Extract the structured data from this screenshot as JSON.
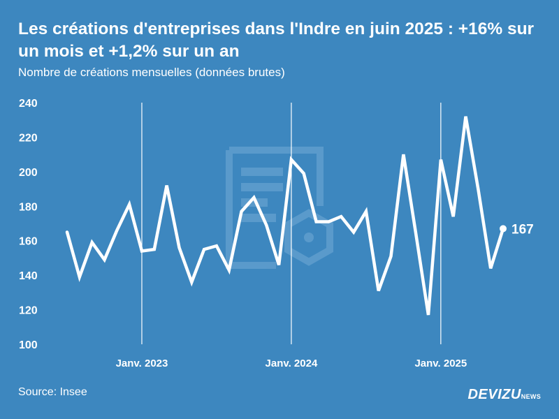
{
  "header": {
    "title": "Les créations d'entreprises dans l'Indre en juin 2025 : +16% sur un mois et +1,2% sur un an",
    "subtitle": "Nombre de créations mensuelles (données brutes)"
  },
  "footer": {
    "source": "Source: Insee",
    "brand_main": "DEVIZU",
    "brand_sub": "NEWS"
  },
  "colors": {
    "background": "#3d87bf",
    "line": "#ffffff",
    "watermark": "#6ba4d1"
  },
  "icons": [
    "document-watermark-icon"
  ],
  "chart_data": {
    "type": "line",
    "title": "Les créations d'entreprises dans l'Indre en juin 2025 : +16% sur un mois et +1,2% sur un an",
    "subtitle": "Nombre de créations mensuelles (données brutes)",
    "xlabel": "",
    "ylabel": "",
    "ylim": [
      100,
      240
    ],
    "yticks": [
      100,
      120,
      140,
      160,
      180,
      200,
      220,
      240
    ],
    "x": [
      "2022-07",
      "2022-08",
      "2022-09",
      "2022-10",
      "2022-11",
      "2022-12",
      "2023-01",
      "2023-02",
      "2023-03",
      "2023-04",
      "2023-05",
      "2023-06",
      "2023-07",
      "2023-08",
      "2023-09",
      "2023-10",
      "2023-11",
      "2023-12",
      "2024-01",
      "2024-02",
      "2024-03",
      "2024-04",
      "2024-05",
      "2024-06",
      "2024-07",
      "2024-08",
      "2024-09",
      "2024-10",
      "2024-11",
      "2024-12",
      "2025-01",
      "2025-02",
      "2025-03",
      "2025-04",
      "2025-05",
      "2025-06"
    ],
    "series": [
      {
        "values": [
          165,
          139,
          159,
          149,
          166,
          181,
          154,
          155,
          192,
          156,
          136,
          155,
          157,
          143,
          177,
          185,
          169,
          146,
          207,
          199,
          171,
          171,
          174,
          165,
          177,
          131,
          151,
          210,
          164,
          117,
          207,
          174,
          232,
          190,
          144,
          167
        ]
      }
    ],
    "x_tick_labels": [
      {
        "label": "Janv. 2023",
        "month": "2023-01"
      },
      {
        "label": "Janv. 2024",
        "month": "2024-01"
      },
      {
        "label": "Janv. 2025",
        "month": "2025-01"
      }
    ],
    "last_value_label": "167",
    "grid": {
      "vertical_year_lines": true,
      "horizontal": false
    }
  }
}
